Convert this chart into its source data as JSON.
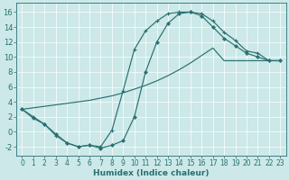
{
  "xlabel": "Humidex (Indice chaleur)",
  "xlim": [
    -0.5,
    23.5
  ],
  "ylim": [
    -3.2,
    17.2
  ],
  "xtick_vals": [
    0,
    1,
    2,
    3,
    4,
    5,
    6,
    7,
    8,
    9,
    10,
    11,
    12,
    13,
    14,
    15,
    16,
    17,
    18,
    19,
    20,
    21,
    22,
    23
  ],
  "ytick_vals": [
    -2,
    0,
    2,
    4,
    6,
    8,
    10,
    12,
    14,
    16
  ],
  "bg_color": "#cce8e8",
  "line_color": "#2a7070",
  "curve_upper_x": [
    0,
    1,
    2,
    3,
    4,
    5,
    6,
    7,
    8,
    9,
    10,
    11,
    12,
    13,
    14,
    15,
    16,
    17,
    18,
    19,
    20,
    21,
    22,
    23
  ],
  "curve_upper_y": [
    3,
    2,
    1,
    -0.5,
    -1.5,
    -2,
    -1.8,
    -2,
    0.2,
    5.5,
    11,
    13.5,
    14.8,
    15.8,
    16,
    16,
    15.8,
    14.8,
    13.3,
    12.2,
    10.8,
    10.5,
    9.5,
    9.5
  ],
  "curve_lower_x": [
    0,
    1,
    2,
    3,
    4,
    5,
    6,
    7,
    8,
    9,
    10,
    11,
    12,
    13,
    14,
    15,
    16,
    17,
    18,
    19,
    20,
    21,
    22,
    23
  ],
  "curve_lower_y": [
    3,
    1.8,
    1,
    -0.3,
    -1.5,
    -2,
    -1.8,
    -2.2,
    -1.8,
    -1.2,
    2,
    8,
    12,
    14.5,
    15.8,
    16,
    15.5,
    14,
    12.5,
    11.5,
    10.5,
    10,
    9.5,
    9.5
  ],
  "diag_x": [
    0,
    1,
    2,
    3,
    4,
    5,
    6,
    7,
    8,
    9,
    10,
    11,
    12,
    13,
    14,
    15,
    16,
    17,
    18,
    19,
    20,
    21,
    22,
    23
  ],
  "diag_y": [
    3,
    3.2,
    3.4,
    3.6,
    3.8,
    4.0,
    4.2,
    4.5,
    4.8,
    5.2,
    5.7,
    6.2,
    6.8,
    7.5,
    8.3,
    9.2,
    10.2,
    11.2,
    9.5,
    9.5,
    9.5,
    9.5,
    9.5,
    9.5
  ],
  "lw": 0.85,
  "ms_plus": 3.0,
  "ms_diamond": 2.5,
  "tick_fs": 5.5,
  "xlabel_fs": 6.5
}
